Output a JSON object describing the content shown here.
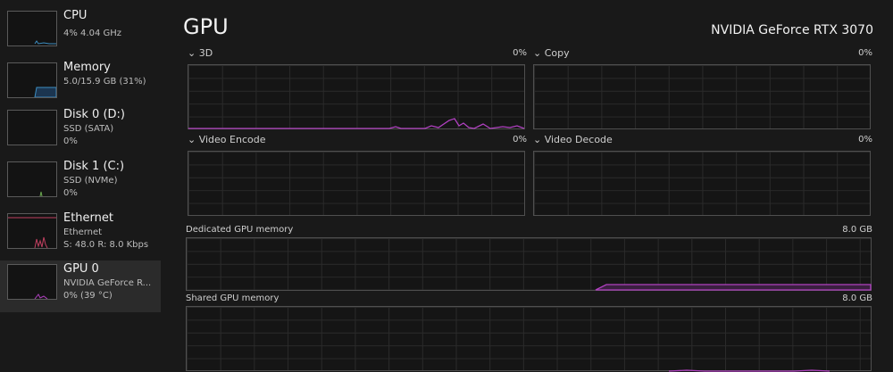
{
  "sidebar": {
    "items": [
      {
        "name": "CPU",
        "lines": [
          "4% 4.04 GHz"
        ]
      },
      {
        "name": "Memory",
        "lines": [
          "5.0/15.9 GB (31%)"
        ]
      },
      {
        "name": "Disk 0 (D:)",
        "lines": [
          "SSD (SATA)",
          "0%"
        ]
      },
      {
        "name": "Disk 1 (C:)",
        "lines": [
          "SSD (NVMe)",
          "0%"
        ]
      },
      {
        "name": "Ethernet",
        "lines": [
          "Ethernet",
          "S: 48.0 R: 8.0 Kbps"
        ]
      },
      {
        "name": "GPU 0",
        "lines": [
          "NVIDIA GeForce R...",
          "0% (39 °C)"
        ]
      }
    ]
  },
  "header": {
    "title": "GPU",
    "model": "NVIDIA GeForce RTX 3070"
  },
  "graphs": [
    {
      "label": "3D",
      "value": "0%"
    },
    {
      "label": "Copy",
      "value": "0%"
    },
    {
      "label": "Video Encode",
      "value": "0%"
    },
    {
      "label": "Video Decode",
      "value": "0%"
    },
    {
      "label": "Dedicated GPU memory",
      "value": "8.0 GB"
    },
    {
      "label": "Shared GPU memory",
      "value": "8.0 GB"
    }
  ]
}
